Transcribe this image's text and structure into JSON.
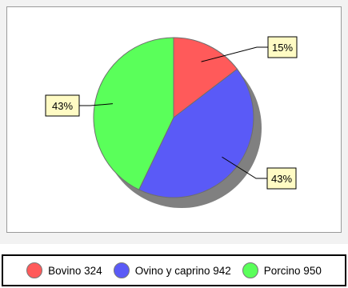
{
  "chart_data": {
    "type": "pie",
    "title": "",
    "categories": [
      "Bovino",
      "Ovino y caprino",
      "Porcino"
    ],
    "values": [
      324,
      942,
      950
    ],
    "slice_labels": [
      "15%",
      "43%",
      "43%"
    ],
    "colors": [
      "#ff5a5a",
      "#5a5af7",
      "#5aff5a"
    ],
    "shadow_color": "#808080",
    "label_box_color": "#fffbc4",
    "legend": {
      "placement": "bottom",
      "entries": [
        "Bovino 324",
        "Ovino y caprino 942",
        "Porcino 950"
      ]
    }
  }
}
